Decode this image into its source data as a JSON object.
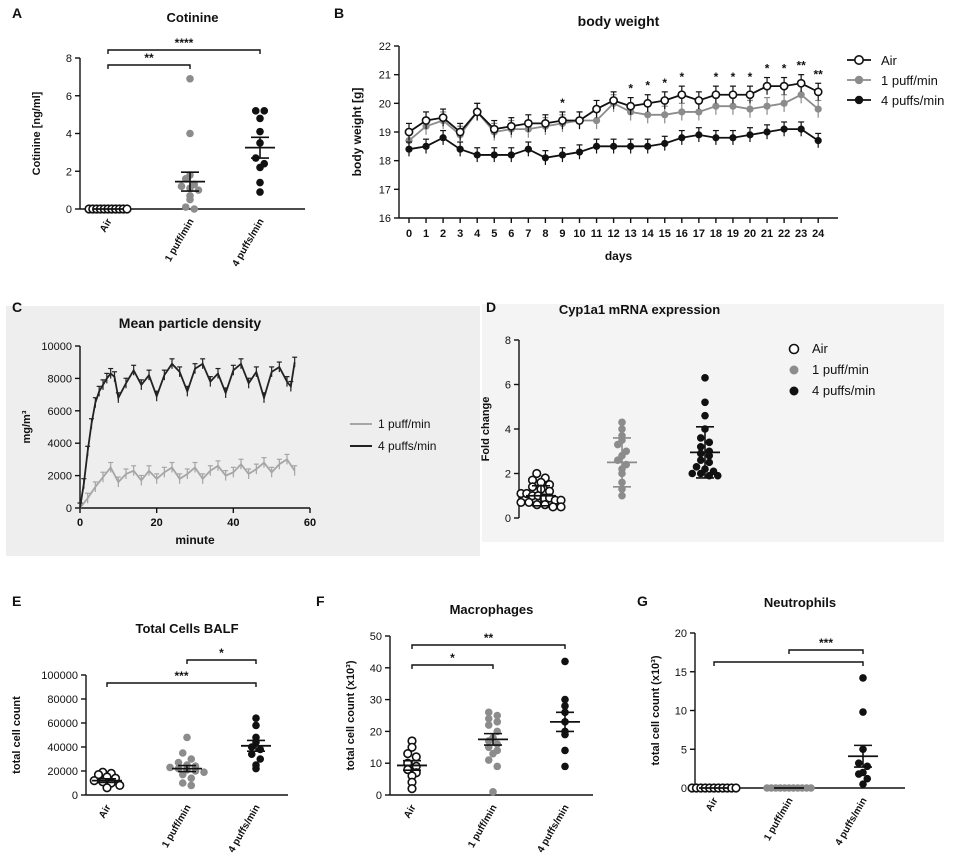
{
  "chart_data": [
    {
      "panel": "A",
      "type": "scatter",
      "title": "Cotinine",
      "ylabel": "Cotinine [ng/ml]",
      "ylim": [
        0,
        8
      ],
      "yticks": [
        0,
        2,
        4,
        6,
        8
      ],
      "categories": [
        "Air",
        "1 puff/min",
        "4 puffs/min"
      ],
      "groups": [
        {
          "name": "Air",
          "values": [
            0,
            0,
            0,
            0,
            0,
            0,
            0,
            0,
            0,
            0,
            0
          ],
          "mean": 0,
          "sem": 0
        },
        {
          "name": "1 puff/min",
          "values": [
            6.9,
            4.0,
            1.8,
            1.6,
            1.3,
            1.2,
            1.1,
            1.0,
            0.7,
            0.5,
            0.1,
            0.0
          ],
          "mean": 1.45,
          "sem": 0.5
        },
        {
          "name": "4 puffs/min",
          "values": [
            5.2,
            5.2,
            4.8,
            4.1,
            3.5,
            2.7,
            2.4,
            2.2,
            1.4,
            0.9
          ],
          "mean": 3.25,
          "sem": 0.55
        }
      ],
      "brackets": [
        {
          "from": "Air",
          "to": "1 puff/min",
          "label": "**"
        },
        {
          "from": "Air",
          "to": "4 puffs/min",
          "label": "****"
        }
      ]
    },
    {
      "panel": "B",
      "type": "line",
      "title": "body weight",
      "xlabel": "days",
      "ylabel": "body weight [g]",
      "ylim": [
        16,
        22
      ],
      "yticks": [
        16,
        17,
        18,
        19,
        20,
        21,
        22
      ],
      "x": [
        0,
        1,
        2,
        3,
        4,
        5,
        6,
        7,
        8,
        9,
        10,
        11,
        12,
        13,
        14,
        15,
        16,
        17,
        18,
        19,
        20,
        21,
        22,
        23,
        24
      ],
      "series": [
        {
          "name": "Air",
          "values": [
            19.0,
            19.4,
            19.5,
            19.0,
            19.7,
            19.1,
            19.2,
            19.3,
            19.3,
            19.4,
            19.4,
            19.8,
            20.1,
            19.9,
            20.0,
            20.1,
            20.3,
            20.1,
            20.3,
            20.3,
            20.3,
            20.6,
            20.6,
            20.7,
            20.4
          ],
          "err": 0.3
        },
        {
          "name": "1 puff/min",
          "values": [
            18.7,
            19.2,
            19.4,
            18.9,
            19.7,
            19.0,
            19.1,
            19.1,
            19.2,
            19.3,
            19.4,
            19.4,
            20.0,
            19.7,
            19.6,
            19.6,
            19.7,
            19.7,
            19.9,
            19.9,
            19.8,
            19.9,
            20.0,
            20.3,
            19.8
          ],
          "err": 0.3
        },
        {
          "name": "4 puffs/min",
          "values": [
            18.4,
            18.5,
            18.8,
            18.4,
            18.2,
            18.2,
            18.2,
            18.4,
            18.1,
            18.2,
            18.3,
            18.5,
            18.5,
            18.5,
            18.5,
            18.6,
            18.8,
            18.9,
            18.8,
            18.8,
            18.9,
            19.0,
            19.1,
            19.1,
            18.7
          ],
          "err": 0.25
        }
      ],
      "annotations": [
        {
          "x": 9,
          "label": "*"
        },
        {
          "x": 13,
          "label": "*"
        },
        {
          "x": 14,
          "label": "*"
        },
        {
          "x": 15,
          "label": "*"
        },
        {
          "x": 16,
          "label": "*"
        },
        {
          "x": 18,
          "label": "*"
        },
        {
          "x": 19,
          "label": "*"
        },
        {
          "x": 20,
          "label": "*"
        },
        {
          "x": 21,
          "label": "*"
        },
        {
          "x": 22,
          "label": "*"
        },
        {
          "x": 23,
          "label": "**"
        },
        {
          "x": 24,
          "label": "**"
        }
      ]
    },
    {
      "panel": "C",
      "type": "line",
      "title": "Mean particle density",
      "xlabel": "minute",
      "ylabel": "mg/m³",
      "xlim": [
        0,
        60
      ],
      "ylim": [
        0,
        10000
      ],
      "xticks": [
        0,
        20,
        40,
        60
      ],
      "yticks": [
        0,
        2000,
        4000,
        6000,
        8000,
        10000
      ],
      "series": [
        {
          "name": "1 puff/min",
          "x": [
            0,
            2,
            4,
            6,
            8,
            10,
            12,
            14,
            16,
            18,
            20,
            22,
            24,
            26,
            28,
            30,
            32,
            34,
            36,
            38,
            40,
            42,
            44,
            46,
            48,
            50,
            52,
            54,
            56
          ],
          "values": [
            0,
            600,
            1300,
            1900,
            2500,
            1600,
            2100,
            2300,
            1700,
            2300,
            1800,
            2200,
            2500,
            1800,
            2100,
            2500,
            1800,
            2300,
            2600,
            2000,
            2200,
            2700,
            2100,
            2400,
            2800,
            2200,
            2700,
            3000,
            2300
          ]
        },
        {
          "name": "4 puffs/min",
          "x": [
            0,
            1,
            2,
            3,
            4,
            5,
            6,
            7,
            8,
            9,
            10,
            12,
            14,
            16,
            18,
            20,
            22,
            24,
            26,
            28,
            30,
            32,
            34,
            36,
            38,
            40,
            42,
            44,
            46,
            48,
            50,
            52,
            54,
            55,
            56
          ],
          "values": [
            0,
            1500,
            3500,
            5200,
            6500,
            7200,
            7600,
            8000,
            8300,
            8100,
            6800,
            7700,
            8500,
            7600,
            8200,
            6900,
            8200,
            8900,
            8400,
            7200,
            8600,
            8900,
            7800,
            8300,
            7100,
            8500,
            8900,
            7700,
            8400,
            6800,
            8400,
            8700,
            7800,
            7500,
            9000
          ]
        }
      ]
    },
    {
      "panel": "D",
      "type": "scatter",
      "title": "Cyp1a1 mRNA expression",
      "ylabel": "Fold change",
      "ylim": [
        0,
        8
      ],
      "yticks": [
        0,
        2,
        4,
        6,
        8
      ],
      "groups": [
        {
          "name": "Air",
          "values": [
            2.0,
            1.8,
            1.7,
            1.6,
            1.5,
            1.4,
            1.3,
            1.2,
            1.1,
            1.1,
            1.0,
            1.0,
            0.9,
            0.9,
            0.8,
            0.8,
            0.7,
            0.7,
            0.6,
            0.6,
            0.5,
            0.5
          ],
          "mean": 1.0,
          "sd": 0.45
        },
        {
          "name": "1 puff/min",
          "values": [
            4.3,
            4.0,
            3.7,
            3.5,
            3.3,
            3.0,
            2.8,
            2.6,
            2.4,
            2.2,
            2.0,
            1.6,
            1.3,
            1.0
          ],
          "mean": 2.5,
          "sd": 1.1
        },
        {
          "name": "4 puffs/min",
          "values": [
            6.3,
            5.2,
            4.6,
            4.0,
            3.6,
            3.4,
            3.2,
            3.0,
            2.9,
            2.8,
            2.6,
            2.5,
            2.3,
            2.2,
            2.1,
            2.0,
            2.0,
            1.9,
            1.9
          ],
          "mean": 2.95,
          "sd": 1.15
        }
      ]
    },
    {
      "panel": "E",
      "type": "scatter",
      "title": "Total Cells BALF",
      "ylabel": "total cell count",
      "ylim": [
        0,
        100000
      ],
      "yticks": [
        0,
        20000,
        40000,
        60000,
        80000,
        100000
      ],
      "categories": [
        "Air",
        "1 puff/min",
        "4 puffs/min"
      ],
      "groups": [
        {
          "name": "Air",
          "values": [
            19000,
            18000,
            17000,
            15000,
            14000,
            12000,
            11000,
            10000,
            8000,
            6000
          ],
          "mean": 12000,
          "sem": 1500
        },
        {
          "name": "1 puff/min",
          "values": [
            48000,
            35000,
            30000,
            27000,
            25000,
            24000,
            23000,
            22000,
            21000,
            20000,
            19000,
            17000,
            14000,
            10000,
            8000
          ],
          "mean": 22000,
          "sem": 2500
        },
        {
          "name": "4 puffs/min",
          "values": [
            64000,
            58000,
            48000,
            44000,
            40000,
            38000,
            34000,
            30000,
            25000,
            22000
          ],
          "mean": 41000,
          "sem": 4500
        }
      ],
      "brackets": [
        {
          "from": "1 puff/min",
          "to": "4 puffs/min",
          "label": "*"
        },
        {
          "from": "Air",
          "to": "4 puffs/min",
          "label": "***"
        }
      ]
    },
    {
      "panel": "F",
      "type": "scatter",
      "title": "Macrophages",
      "ylabel": "total cell count (x10³)",
      "ylim": [
        0,
        50
      ],
      "yticks": [
        0,
        10,
        20,
        30,
        40,
        50
      ],
      "categories": [
        "Air",
        "1 puff/min",
        "4 puffs/min"
      ],
      "groups": [
        {
          "name": "Air",
          "values": [
            17,
            15,
            13,
            12,
            10,
            9,
            8,
            7,
            6,
            4,
            2
          ],
          "mean": 9.3,
          "sem": 1.5
        },
        {
          "name": "1 puff/min",
          "values": [
            26,
            25,
            24,
            23,
            22,
            20,
            18,
            17,
            16,
            15,
            14,
            13,
            11,
            9,
            1
          ],
          "mean": 17.5,
          "sem": 1.8
        },
        {
          "name": "4 puffs/min",
          "values": [
            42,
            30,
            28,
            26,
            23,
            20,
            19,
            14,
            9
          ],
          "mean": 23,
          "sem": 3.0
        }
      ],
      "brackets": [
        {
          "from": "Air",
          "to": "1 puff/min",
          "label": "*"
        },
        {
          "from": "Air",
          "to": "4 puffs/min",
          "label": "**"
        }
      ]
    },
    {
      "panel": "G",
      "type": "scatter",
      "title": "Neutrophils",
      "ylabel": "total cell count (x10³)",
      "ylim": [
        0,
        20
      ],
      "yticks": [
        0,
        5,
        10,
        15,
        20
      ],
      "categories": [
        "Air",
        "1 puff/min",
        "4 puffs/min"
      ],
      "groups": [
        {
          "name": "Air",
          "values": [
            0,
            0,
            0,
            0,
            0,
            0,
            0,
            0,
            0,
            0,
            0
          ],
          "mean": 0,
          "sem": 0
        },
        {
          "name": "1 puff/min",
          "values": [
            0,
            0,
            0,
            0,
            0,
            0,
            0,
            0,
            0,
            0,
            0
          ],
          "mean": 0,
          "sem": 0
        },
        {
          "name": "4 puffs/min",
          "values": [
            14.2,
            9.8,
            5.0,
            3.2,
            2.8,
            2.0,
            1.8,
            1.2,
            0.5
          ],
          "mean": 4.1,
          "sem": 1.4
        }
      ],
      "brackets": [
        {
          "from": "1 puff/min",
          "to": "4 puffs/min",
          "label": "***"
        },
        {
          "from": "Air",
          "to": "4 puffs/min",
          "label": ""
        }
      ]
    }
  ],
  "colors": {
    "air": "#111111",
    "one_puff": "#8c8c8c",
    "four_puffs": "#111111",
    "panel_bg_c": "#eeeeee",
    "panel_bg_d": "#f4f4f4"
  },
  "legend_B": [
    "Air",
    "1 puff/min",
    "4 puffs/min"
  ],
  "legend_C": [
    "1 puff/min",
    "4 puffs/min"
  ],
  "legend_D": [
    "Air",
    "1 puff/min",
    "4 puffs/min"
  ]
}
